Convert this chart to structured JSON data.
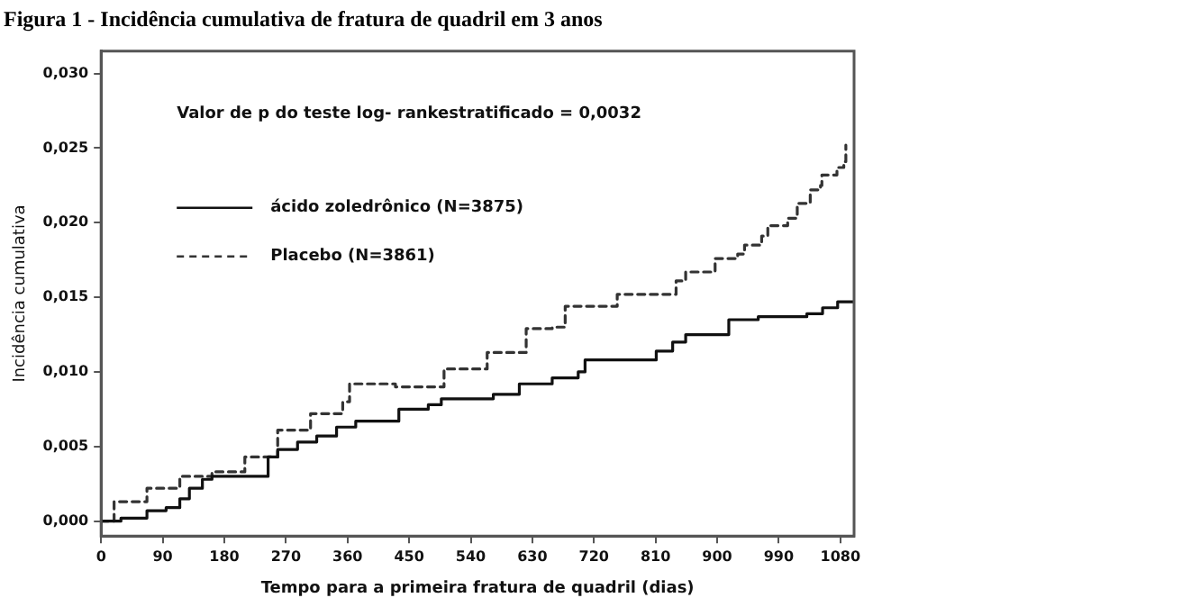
{
  "chart_data": {
    "type": "step",
    "title": "Figura 1 - Incidência cumulativa de fratura de quadril em 3 anos",
    "xlabel": "Tempo para a primeira fratura de quadril (dias)",
    "ylabel": "Incidência cumulativa",
    "annotations": [
      "Valor de p do teste log- rankestratificado = 0,0032"
    ],
    "xlim": [
      0,
      1100
    ],
    "xticks": [
      0,
      90,
      180,
      270,
      360,
      450,
      540,
      630,
      720,
      810,
      900,
      990,
      1080
    ],
    "ylim": [
      -0.001,
      0.0315
    ],
    "yticks": [
      {
        "value": 0,
        "label": "0,000"
      },
      {
        "value": 0.005,
        "label": "0,005"
      },
      {
        "value": 0.01,
        "label": "0,010"
      },
      {
        "value": 0.015,
        "label": "0,015"
      },
      {
        "value": 0.02,
        "label": "0,020"
      },
      {
        "value": 0.025,
        "label": "0,025"
      },
      {
        "value": 0.03,
        "label": "0,030"
      }
    ],
    "grid": false,
    "legend": "top left",
    "marker": "none",
    "series": [
      {
        "name": "ácido zoledrônico (N=3875)",
        "color": "#111111",
        "line_style": "solid",
        "x": [
          0,
          29,
          67,
          95,
          115,
          129,
          148,
          162,
          244,
          258,
          287,
          315,
          344,
          372,
          435,
          478,
          497,
          573,
          611,
          659,
          697,
          707,
          811,
          835,
          854,
          917,
          960,
          1031,
          1054,
          1076,
          1100
        ],
        "values": [
          0,
          0.0002,
          0.0007,
          0.0009,
          0.0015,
          0.0022,
          0.0028,
          0.003,
          0.0043,
          0.0048,
          0.0053,
          0.0057,
          0.0063,
          0.0067,
          0.0075,
          0.0078,
          0.0082,
          0.0085,
          0.0092,
          0.0096,
          0.01,
          0.0108,
          0.0114,
          0.012,
          0.0125,
          0.0135,
          0.0137,
          0.0139,
          0.0143,
          0.0147,
          0.0147
        ]
      },
      {
        "name": "Placebo (N=3861)",
        "color": "#333333",
        "line_style": "dashed",
        "x": [
          0,
          19,
          67,
          115,
          162,
          210,
          258,
          306,
          353,
          363,
          430,
          501,
          564,
          621,
          659,
          678,
          754,
          840,
          854,
          897,
          930,
          940,
          965,
          974,
          1003,
          1017,
          1036,
          1051,
          1053,
          1075,
          1085,
          1088
        ],
        "values": [
          0,
          0.0013,
          0.0022,
          0.003,
          0.0033,
          0.0043,
          0.0061,
          0.0072,
          0.008,
          0.0092,
          0.009,
          0.0102,
          0.0113,
          0.0129,
          0.013,
          0.0144,
          0.0152,
          0.0161,
          0.0167,
          0.0176,
          0.0179,
          0.0185,
          0.0191,
          0.0198,
          0.0203,
          0.0213,
          0.0222,
          0.0225,
          0.0232,
          0.0237,
          0.0241,
          0.0252
        ]
      }
    ]
  }
}
